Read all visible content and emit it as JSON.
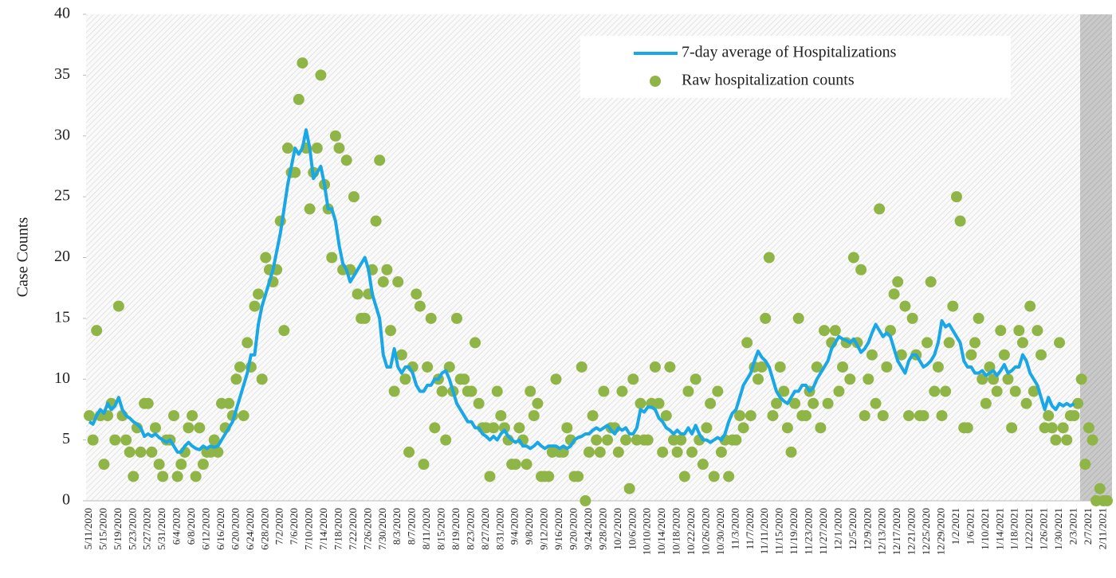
{
  "chart_data": {
    "type": "line_scatter",
    "ylabel": "Case Counts",
    "ylim": [
      0,
      40
    ],
    "yticks": [
      0,
      5,
      10,
      15,
      20,
      25,
      30,
      35,
      40
    ],
    "categories": [
      "5/11/2020",
      null,
      null,
      null,
      "5/15/2020",
      null,
      null,
      null,
      "5/19/2020",
      null,
      null,
      null,
      "5/23/2020",
      null,
      null,
      null,
      "5/27/2020",
      null,
      null,
      null,
      "5/31/2020",
      null,
      null,
      null,
      "6/4/2020",
      null,
      null,
      null,
      "6/8/2020",
      null,
      null,
      null,
      "6/12/2020",
      null,
      null,
      null,
      "6/16/2020",
      null,
      null,
      null,
      "6/20/2020",
      null,
      null,
      null,
      "6/24/2020",
      null,
      null,
      null,
      "6/28/2020",
      null,
      null,
      null,
      "7/2/2020",
      null,
      null,
      null,
      "7/6/2020",
      null,
      null,
      null,
      "7/10/2020",
      null,
      null,
      null,
      "7/14/2020",
      null,
      null,
      null,
      "7/18/2020",
      null,
      null,
      null,
      "7/22/2020",
      null,
      null,
      null,
      "7/26/2020",
      null,
      null,
      null,
      "7/30/2020",
      null,
      null,
      null,
      "8/3/2020",
      null,
      null,
      null,
      "8/7/2020",
      null,
      null,
      null,
      "8/11/2020",
      null,
      null,
      null,
      "8/15/2020",
      null,
      null,
      null,
      "8/19/2020",
      null,
      null,
      null,
      "8/23/2020",
      null,
      null,
      null,
      "8/27/2020",
      null,
      null,
      null,
      "8/31/2020",
      null,
      null,
      null,
      "9/4/2020",
      null,
      null,
      null,
      "9/8/2020",
      null,
      null,
      null,
      "9/12/2020",
      null,
      null,
      null,
      "9/16/2020",
      null,
      null,
      null,
      "9/20/2020",
      null,
      null,
      null,
      "9/24/2020",
      null,
      null,
      null,
      "9/28/2020",
      null,
      null,
      null,
      "10/2/2020",
      null,
      null,
      null,
      "10/6/2020",
      null,
      null,
      null,
      "10/10/2020",
      null,
      null,
      null,
      "10/14/2020",
      null,
      null,
      null,
      "10/18/2020",
      null,
      null,
      null,
      "10/22/2020",
      null,
      null,
      null,
      "10/26/2020",
      null,
      null,
      null,
      "10/30/2020",
      null,
      null,
      null,
      "11/3/2020",
      null,
      null,
      null,
      "11/7/2020",
      null,
      null,
      null,
      "11/11/2020",
      null,
      null,
      null,
      "11/15/2020",
      null,
      null,
      null,
      "11/19/2020",
      null,
      null,
      null,
      "11/23/2020",
      null,
      null,
      null,
      "11/27/2020",
      null,
      null,
      null,
      "12/1/2020",
      null,
      null,
      null,
      "12/5/2020",
      null,
      null,
      null,
      "12/9/2020",
      null,
      null,
      null,
      "12/13/2020",
      null,
      null,
      null,
      "12/17/2020",
      null,
      null,
      null,
      "12/21/2020",
      null,
      null,
      null,
      "12/25/2020",
      null,
      null,
      null,
      "12/29/2020",
      null,
      null,
      null,
      "1/2/2021",
      null,
      null,
      null,
      "1/6/2021",
      null,
      null,
      null,
      "1/10/2021",
      null,
      null,
      null,
      "1/14/2021",
      null,
      null,
      null,
      "1/18/2021",
      null,
      null,
      null,
      "1/22/2021",
      null,
      null,
      null,
      "1/26/2021",
      null,
      null,
      null,
      "1/30/2021",
      null,
      null,
      null,
      "2/3/2021",
      null,
      null,
      null,
      "2/7/2021",
      null,
      null,
      null,
      "2/11/2021",
      null
    ],
    "series": [
      {
        "name": "7-day average of Hospitalizations",
        "color": "#1aa7e6",
        "type": "line",
        "values": [
          6.5,
          6.3,
          7,
          7.5,
          7.2,
          8,
          7.5,
          7.8,
          8.5,
          7.5,
          7,
          6.8,
          6.5,
          6.3,
          6,
          5.3,
          5.5,
          5.3,
          5.5,
          5.2,
          5,
          4.8,
          5,
          4.5,
          4,
          4,
          4.5,
          4.8,
          4.5,
          4.3,
          4.2,
          4.5,
          4.3,
          4.5,
          4.4,
          4.5,
          5,
          5.5,
          6,
          6.5,
          7.5,
          8.5,
          9.5,
          10.5,
          12,
          12,
          14.5,
          16,
          17,
          18,
          19,
          20.5,
          22,
          24,
          26,
          27.5,
          29,
          28.5,
          29,
          30.5,
          29,
          26.5,
          27,
          27.5,
          26,
          24,
          24,
          23,
          21,
          19.5,
          19,
          18,
          18.5,
          19,
          19.5,
          20,
          19,
          17,
          16,
          15,
          12,
          11,
          11,
          12.5,
          11,
          10.5,
          11,
          11,
          10.5,
          9.5,
          9,
          9,
          9.5,
          9.5,
          10,
          10,
          10.5,
          10.7,
          10,
          9,
          8,
          7.5,
          7,
          6.5,
          6.5,
          6,
          6,
          5.5,
          5.3,
          5,
          5.3,
          5,
          5.5,
          5.8,
          5.3,
          5,
          4.8,
          5,
          4.5,
          4.5,
          4.3,
          4.5,
          4.8,
          4.5,
          4.3,
          4.5,
          4.5,
          4.5,
          4.3,
          4.5,
          4.3,
          4.5,
          5,
          5.2,
          5.3,
          5.5,
          5.5,
          5.8,
          6,
          5.8,
          6,
          6.2,
          5.8,
          5.5,
          6,
          5.8,
          6,
          5.5,
          5.5,
          6,
          7.5,
          7.3,
          7.7,
          7.7,
          7.5,
          6.8,
          6.5,
          6,
          5.8,
          5.5,
          5.8,
          5.5,
          5.5,
          6,
          5.5,
          6.2,
          5.5,
          5,
          5,
          4.8,
          5,
          5.2,
          5,
          5.5,
          6.5,
          7.2,
          7.5,
          8.5,
          9.5,
          10,
          10.5,
          11.5,
          12.3,
          11.8,
          11.5,
          11,
          10,
          9,
          8.5,
          8.2,
          8,
          8.5,
          9,
          9,
          9.5,
          9.5,
          9,
          9.3,
          10,
          10.5,
          11,
          11.5,
          12.5,
          13,
          13.5,
          13.3,
          13.2,
          13,
          13.3,
          12.8,
          12.2,
          12.5,
          13,
          13.8,
          14.5,
          14,
          13.5,
          13.8,
          13.5,
          12.5,
          11.5,
          11,
          10.5,
          11.5,
          12,
          12,
          11.5,
          11,
          11.2,
          11.5,
          12,
          13,
          14.8,
          14.3,
          14.5,
          14,
          13.5,
          13,
          11.5,
          11,
          11,
          10.5,
          10.5,
          10.7,
          10.3,
          10.5,
          10.7,
          10.3,
          10.7,
          11.2,
          10.5,
          10.7,
          11,
          11,
          12,
          11.5,
          10.5,
          10,
          9.5,
          8.5,
          7.5,
          8.5,
          7.8,
          7.5,
          8,
          7.8,
          8,
          7.8,
          8,
          null,
          null,
          null,
          null,
          null,
          null,
          null,
          null,
          null
        ]
      },
      {
        "name": "Raw hospitalization counts",
        "color": "#8fb547",
        "type": "scatter",
        "values": [
          7,
          5,
          14,
          7,
          3,
          7,
          8,
          5,
          16,
          7,
          5,
          4,
          2,
          6,
          4,
          8,
          8,
          4,
          6,
          3,
          2,
          5,
          5,
          7,
          2,
          3,
          4,
          6,
          7,
          2,
          6,
          3,
          4,
          4,
          5,
          4,
          8,
          6,
          8,
          7,
          10,
          11,
          7,
          13,
          11,
          16,
          17,
          10,
          20,
          19,
          18,
          19,
          23,
          14,
          29,
          27,
          27,
          33,
          36,
          29,
          24,
          27,
          29,
          35,
          26,
          24,
          20,
          30,
          29,
          19,
          28,
          19,
          25,
          17,
          15,
          15,
          17,
          19,
          23,
          28,
          18,
          19,
          14,
          9,
          18,
          12,
          10,
          4,
          11,
          17,
          16,
          3,
          11,
          15,
          6,
          10,
          9,
          5,
          11,
          9,
          15,
          10,
          10,
          9,
          9,
          13,
          8,
          6,
          6,
          2,
          6,
          9,
          7,
          6,
          5,
          3,
          3,
          6,
          5,
          3,
          9,
          7,
          8,
          2,
          2,
          2,
          4,
          10,
          4,
          4,
          6,
          5,
          2,
          2,
          11,
          0,
          4,
          7,
          5,
          4,
          9,
          5,
          6,
          6,
          4,
          9,
          5,
          1,
          10,
          5,
          8,
          5,
          5,
          8,
          11,
          8,
          4,
          7,
          11,
          5,
          4,
          5,
          2,
          9,
          4,
          10,
          5,
          3,
          6,
          8,
          2,
          9,
          4,
          5,
          2,
          5,
          5,
          7,
          6,
          13,
          7,
          11,
          10,
          11,
          15,
          20,
          7,
          8,
          11,
          9,
          6,
          4,
          8,
          15,
          7,
          7,
          9,
          8,
          11,
          6,
          14,
          8,
          13,
          14,
          9,
          11,
          13,
          10,
          20,
          13,
          19,
          7,
          10,
          12,
          8,
          24,
          7,
          11,
          14,
          17,
          18,
          12,
          16,
          7,
          15,
          12,
          7,
          7,
          13,
          18,
          9,
          11,
          7,
          9,
          13,
          16,
          25,
          23,
          6,
          6,
          12,
          13,
          15,
          10,
          8,
          11,
          10,
          9,
          14,
          12,
          10,
          6,
          9,
          14,
          13,
          8,
          16,
          9,
          14,
          12,
          6,
          7,
          6,
          5,
          13,
          6,
          5,
          7,
          7,
          8,
          10,
          3,
          6,
          5,
          0,
          1,
          0,
          0
        ]
      }
    ]
  }
}
